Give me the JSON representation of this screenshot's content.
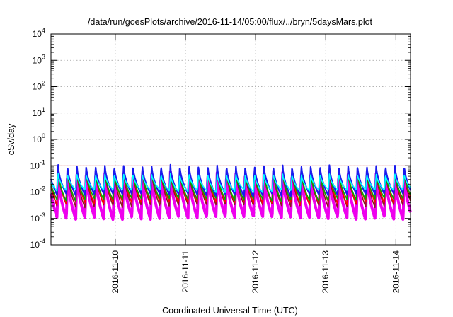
{
  "chart_data": {
    "type": "line",
    "title": "/data/run/goesPlots/archive/2016-11-14/05:00/flux/../bryn/5daysMars.plot",
    "xlabel": "Coordinated Universal Time (UTC)",
    "ylabel": "cSv/day",
    "y_scale": "log",
    "ylim": [
      0.0001,
      10000
    ],
    "y_ticks": [
      {
        "value": 0.0001,
        "base": "10",
        "exp": "-4"
      },
      {
        "value": 0.001,
        "base": "10",
        "exp": "-3"
      },
      {
        "value": 0.01,
        "base": "10",
        "exp": "-2"
      },
      {
        "value": 0.1,
        "base": "10",
        "exp": "-1"
      },
      {
        "value": 1,
        "base": "10",
        "exp": "0"
      },
      {
        "value": 10,
        "base": "10",
        "exp": "1"
      },
      {
        "value": 100,
        "base": "10",
        "exp": "2"
      },
      {
        "value": 1000,
        "base": "10",
        "exp": "3"
      },
      {
        "value": 10000,
        "base": "10",
        "exp": "4"
      }
    ],
    "xlim": [
      "2016-11-09T02:00",
      "2016-11-14T05:00"
    ],
    "x_ticks": [
      "2016-11-10",
      "2016-11-11",
      "2016-11-12",
      "2016-11-13",
      "2016-11-14"
    ],
    "grid": true,
    "legend": "none",
    "reference_line": {
      "value": 0.1,
      "color": "#e8a0a0"
    },
    "orbit_hours": 3.2,
    "series": [
      {
        "color": "#ee00ee",
        "peak": 0.06,
        "trough": 0.0012
      },
      {
        "color": "#8b1a1a",
        "peak": 0.08,
        "trough": 0.0035
      },
      {
        "color": "#ff0000",
        "peak": 0.1,
        "trough": 0.0045
      },
      {
        "color": "#00aa00",
        "peak": 0.07,
        "trough": 0.006
      },
      {
        "color": "#1a1aee",
        "peak": 0.11,
        "trough": 0.009
      },
      {
        "color": "#00ffff",
        "peak": 0.05,
        "trough": 0.013
      }
    ]
  }
}
